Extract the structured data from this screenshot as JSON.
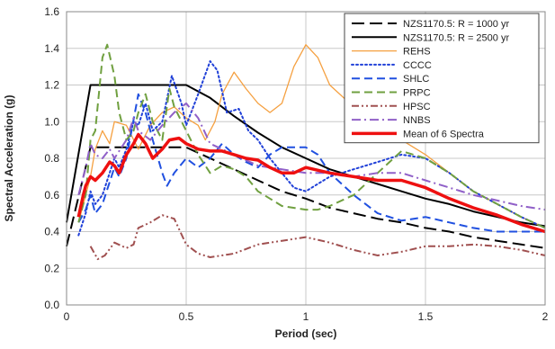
{
  "chart_data": {
    "type": "line",
    "title": "",
    "xlabel": "Period (sec)",
    "ylabel": "Spectral Acceleration (g)",
    "xlim": [
      0,
      2
    ],
    "ylim": [
      0,
      1.6
    ],
    "xticks": [
      0,
      0.5,
      1,
      1.5,
      2
    ],
    "xtick_labels": [
      "0",
      "0.5",
      "1",
      "1.5",
      "2"
    ],
    "yticks": [
      0,
      0.2,
      0.4,
      0.6,
      0.8,
      1.0,
      1.2,
      1.4,
      1.6
    ],
    "ytick_labels": [
      "0.0",
      "0.2",
      "0.4",
      "0.6",
      "0.8",
      "1.0",
      "1.2",
      "1.4",
      "1.6"
    ],
    "grid": {
      "horizontal": true,
      "vertical": true
    },
    "legend_position": "top-right",
    "series": [
      {
        "name": "NZS1170.5: R = 1000 yr",
        "color": "#000000",
        "dash": "long-dash",
        "width": 2,
        "points": [
          [
            0,
            0.32
          ],
          [
            0.1,
            0.86
          ],
          [
            0.5,
            0.86
          ],
          [
            0.6,
            0.8
          ],
          [
            0.7,
            0.74
          ],
          [
            0.8,
            0.68
          ],
          [
            0.9,
            0.62
          ],
          [
            1.0,
            0.58
          ],
          [
            1.1,
            0.53
          ],
          [
            1.2,
            0.5
          ],
          [
            1.3,
            0.47
          ],
          [
            1.4,
            0.45
          ],
          [
            1.5,
            0.42
          ],
          [
            1.6,
            0.4
          ],
          [
            1.7,
            0.37
          ],
          [
            1.8,
            0.35
          ],
          [
            1.9,
            0.33
          ],
          [
            2.0,
            0.31
          ]
        ]
      },
      {
        "name": "NZS1170.5: R = 2500 yr",
        "color": "#000000",
        "dash": "solid",
        "width": 2,
        "points": [
          [
            0,
            0.45
          ],
          [
            0.1,
            1.2
          ],
          [
            0.5,
            1.2
          ],
          [
            0.6,
            1.13
          ],
          [
            0.7,
            1.03
          ],
          [
            0.8,
            0.94
          ],
          [
            0.9,
            0.86
          ],
          [
            1.0,
            0.8
          ],
          [
            1.1,
            0.74
          ],
          [
            1.2,
            0.7
          ],
          [
            1.3,
            0.66
          ],
          [
            1.4,
            0.62
          ],
          [
            1.5,
            0.58
          ],
          [
            1.6,
            0.55
          ],
          [
            1.7,
            0.51
          ],
          [
            1.8,
            0.48
          ],
          [
            1.9,
            0.45
          ],
          [
            2.0,
            0.43
          ]
        ]
      },
      {
        "name": "REHS",
        "color": "#f5a040",
        "dash": "solid",
        "width": 1.3,
        "points": [
          [
            0.05,
            0.45
          ],
          [
            0.08,
            0.6
          ],
          [
            0.1,
            0.7
          ],
          [
            0.12,
            0.85
          ],
          [
            0.15,
            0.95
          ],
          [
            0.18,
            0.88
          ],
          [
            0.2,
            1.0
          ],
          [
            0.25,
            0.98
          ],
          [
            0.3,
            0.85
          ],
          [
            0.35,
            0.98
          ],
          [
            0.4,
            1.05
          ],
          [
            0.45,
            1.08
          ],
          [
            0.5,
            1.02
          ],
          [
            0.55,
            0.98
          ],
          [
            0.58,
            0.9
          ],
          [
            0.62,
            1.0
          ],
          [
            0.65,
            1.15
          ],
          [
            0.7,
            1.27
          ],
          [
            0.75,
            1.18
          ],
          [
            0.8,
            1.1
          ],
          [
            0.85,
            1.05
          ],
          [
            0.9,
            1.1
          ],
          [
            0.95,
            1.3
          ],
          [
            1.0,
            1.42
          ],
          [
            1.05,
            1.35
          ],
          [
            1.1,
            1.2
          ],
          [
            1.2,
            1.08
          ],
          [
            1.3,
            0.98
          ],
          [
            1.4,
            0.9
          ],
          [
            1.5,
            0.82
          ],
          [
            1.6,
            0.72
          ],
          [
            1.7,
            0.62
          ],
          [
            1.8,
            0.55
          ],
          [
            1.9,
            0.48
          ],
          [
            2.0,
            0.42
          ]
        ]
      },
      {
        "name": "CCCC",
        "color": "#2040d8",
        "dash": "dotted",
        "width": 2,
        "points": [
          [
            0.05,
            0.38
          ],
          [
            0.08,
            0.5
          ],
          [
            0.1,
            0.62
          ],
          [
            0.12,
            0.55
          ],
          [
            0.15,
            0.6
          ],
          [
            0.18,
            0.72
          ],
          [
            0.2,
            0.8
          ],
          [
            0.22,
            0.75
          ],
          [
            0.25,
            0.85
          ],
          [
            0.28,
            1.0
          ],
          [
            0.3,
            0.98
          ],
          [
            0.33,
            1.1
          ],
          [
            0.36,
            0.95
          ],
          [
            0.4,
            1.0
          ],
          [
            0.44,
            1.25
          ],
          [
            0.48,
            1.1
          ],
          [
            0.5,
            0.98
          ],
          [
            0.55,
            1.15
          ],
          [
            0.6,
            1.33
          ],
          [
            0.63,
            1.28
          ],
          [
            0.67,
            1.05
          ],
          [
            0.72,
            1.07
          ],
          [
            0.76,
            0.95
          ],
          [
            0.8,
            0.9
          ],
          [
            0.85,
            0.8
          ],
          [
            0.9,
            0.72
          ],
          [
            0.95,
            0.64
          ],
          [
            1.0,
            0.62
          ],
          [
            1.05,
            0.66
          ],
          [
            1.1,
            0.7
          ],
          [
            1.2,
            0.74
          ],
          [
            1.3,
            0.78
          ],
          [
            1.4,
            0.82
          ],
          [
            1.5,
            0.8
          ],
          [
            1.6,
            0.72
          ],
          [
            1.7,
            0.62
          ],
          [
            1.8,
            0.55
          ],
          [
            1.9,
            0.48
          ],
          [
            2.0,
            0.42
          ]
        ]
      },
      {
        "name": "SHLC",
        "color": "#2050e0",
        "dash": "dash",
        "width": 2,
        "points": [
          [
            0.05,
            0.45
          ],
          [
            0.08,
            0.52
          ],
          [
            0.1,
            0.6
          ],
          [
            0.12,
            0.5
          ],
          [
            0.15,
            0.55
          ],
          [
            0.2,
            0.75
          ],
          [
            0.22,
            0.7
          ],
          [
            0.25,
            0.8
          ],
          [
            0.3,
            1.15
          ],
          [
            0.33,
            1.05
          ],
          [
            0.36,
            0.9
          ],
          [
            0.4,
            0.72
          ],
          [
            0.42,
            0.65
          ],
          [
            0.45,
            0.72
          ],
          [
            0.5,
            0.8
          ],
          [
            0.55,
            0.75
          ],
          [
            0.6,
            0.8
          ],
          [
            0.65,
            0.88
          ],
          [
            0.7,
            0.82
          ],
          [
            0.75,
            0.78
          ],
          [
            0.8,
            0.75
          ],
          [
            0.85,
            0.82
          ],
          [
            0.9,
            0.86
          ],
          [
            1.0,
            0.86
          ],
          [
            1.05,
            0.82
          ],
          [
            1.1,
            0.72
          ],
          [
            1.2,
            0.6
          ],
          [
            1.3,
            0.5
          ],
          [
            1.4,
            0.46
          ],
          [
            1.5,
            0.48
          ],
          [
            1.6,
            0.45
          ],
          [
            1.7,
            0.42
          ],
          [
            1.8,
            0.4
          ],
          [
            1.9,
            0.4
          ],
          [
            2.0,
            0.4
          ]
        ]
      },
      {
        "name": "PRPC",
        "color": "#70a040",
        "dash": "dash",
        "width": 2,
        "points": [
          [
            0.05,
            0.45
          ],
          [
            0.08,
            0.6
          ],
          [
            0.1,
            0.9
          ],
          [
            0.12,
            0.95
          ],
          [
            0.15,
            1.35
          ],
          [
            0.17,
            1.42
          ],
          [
            0.2,
            1.25
          ],
          [
            0.22,
            1.05
          ],
          [
            0.25,
            0.9
          ],
          [
            0.28,
            0.95
          ],
          [
            0.3,
            1.05
          ],
          [
            0.33,
            1.15
          ],
          [
            0.36,
            1.0
          ],
          [
            0.4,
            0.9
          ],
          [
            0.43,
            1.18
          ],
          [
            0.45,
            1.08
          ],
          [
            0.5,
            0.95
          ],
          [
            0.55,
            0.82
          ],
          [
            0.6,
            0.72
          ],
          [
            0.65,
            0.76
          ],
          [
            0.7,
            0.74
          ],
          [
            0.75,
            0.7
          ],
          [
            0.8,
            0.62
          ],
          [
            0.85,
            0.58
          ],
          [
            0.9,
            0.54
          ],
          [
            1.0,
            0.52
          ],
          [
            1.05,
            0.52
          ],
          [
            1.1,
            0.54
          ],
          [
            1.2,
            0.6
          ],
          [
            1.3,
            0.72
          ],
          [
            1.4,
            0.84
          ],
          [
            1.5,
            0.8
          ],
          [
            1.6,
            0.72
          ],
          [
            1.7,
            0.62
          ],
          [
            1.8,
            0.55
          ],
          [
            1.9,
            0.48
          ],
          [
            2.0,
            0.42
          ]
        ]
      },
      {
        "name": "HPSC",
        "color": "#a05050",
        "dash": "dash-dot-dot",
        "width": 2,
        "points": [
          [
            0.1,
            0.32
          ],
          [
            0.13,
            0.25
          ],
          [
            0.16,
            0.27
          ],
          [
            0.2,
            0.34
          ],
          [
            0.25,
            0.31
          ],
          [
            0.28,
            0.33
          ],
          [
            0.3,
            0.42
          ],
          [
            0.35,
            0.45
          ],
          [
            0.4,
            0.49
          ],
          [
            0.45,
            0.47
          ],
          [
            0.5,
            0.33
          ],
          [
            0.55,
            0.28
          ],
          [
            0.6,
            0.26
          ],
          [
            0.7,
            0.28
          ],
          [
            0.8,
            0.33
          ],
          [
            0.9,
            0.35
          ],
          [
            1.0,
            0.37
          ],
          [
            1.1,
            0.34
          ],
          [
            1.2,
            0.3
          ],
          [
            1.3,
            0.27
          ],
          [
            1.4,
            0.29
          ],
          [
            1.5,
            0.32
          ],
          [
            1.6,
            0.32
          ],
          [
            1.7,
            0.33
          ],
          [
            1.8,
            0.32
          ],
          [
            1.9,
            0.3
          ],
          [
            2.0,
            0.27
          ]
        ]
      },
      {
        "name": "NNBS",
        "color": "#9060c8",
        "dash": "dash-dot",
        "width": 2,
        "points": [
          [
            0.05,
            0.6
          ],
          [
            0.08,
            0.75
          ],
          [
            0.1,
            0.88
          ],
          [
            0.12,
            0.82
          ],
          [
            0.15,
            0.8
          ],
          [
            0.18,
            0.85
          ],
          [
            0.2,
            0.8
          ],
          [
            0.25,
            0.9
          ],
          [
            0.28,
            1.02
          ],
          [
            0.3,
            0.95
          ],
          [
            0.35,
            0.9
          ],
          [
            0.4,
            0.98
          ],
          [
            0.45,
            1.05
          ],
          [
            0.5,
            1.1
          ],
          [
            0.55,
            1.02
          ],
          [
            0.6,
            0.88
          ],
          [
            0.65,
            0.85
          ],
          [
            0.7,
            0.82
          ],
          [
            0.8,
            0.76
          ],
          [
            0.9,
            0.74
          ],
          [
            1.0,
            0.72
          ],
          [
            1.1,
            0.72
          ],
          [
            1.2,
            0.7
          ],
          [
            1.3,
            0.72
          ],
          [
            1.4,
            0.72
          ],
          [
            1.5,
            0.68
          ],
          [
            1.6,
            0.64
          ],
          [
            1.7,
            0.6
          ],
          [
            1.8,
            0.57
          ],
          [
            1.9,
            0.54
          ],
          [
            2.0,
            0.52
          ]
        ]
      },
      {
        "name": "Mean of 6 Spectra",
        "color": "#ee1010",
        "dash": "solid",
        "width": 3.5,
        "points": [
          [
            0.05,
            0.48
          ],
          [
            0.07,
            0.6
          ],
          [
            0.08,
            0.65
          ],
          [
            0.1,
            0.7
          ],
          [
            0.12,
            0.68
          ],
          [
            0.15,
            0.72
          ],
          [
            0.18,
            0.78
          ],
          [
            0.2,
            0.76
          ],
          [
            0.22,
            0.72
          ],
          [
            0.25,
            0.82
          ],
          [
            0.28,
            0.88
          ],
          [
            0.3,
            0.93
          ],
          [
            0.33,
            0.88
          ],
          [
            0.36,
            0.8
          ],
          [
            0.4,
            0.85
          ],
          [
            0.43,
            0.9
          ],
          [
            0.47,
            0.91
          ],
          [
            0.5,
            0.88
          ],
          [
            0.55,
            0.85
          ],
          [
            0.6,
            0.84
          ],
          [
            0.65,
            0.84
          ],
          [
            0.7,
            0.82
          ],
          [
            0.75,
            0.8
          ],
          [
            0.8,
            0.79
          ],
          [
            0.85,
            0.75
          ],
          [
            0.9,
            0.72
          ],
          [
            0.95,
            0.72
          ],
          [
            1.0,
            0.75
          ],
          [
            1.1,
            0.72
          ],
          [
            1.2,
            0.7
          ],
          [
            1.3,
            0.68
          ],
          [
            1.4,
            0.68
          ],
          [
            1.5,
            0.64
          ],
          [
            1.6,
            0.58
          ],
          [
            1.7,
            0.53
          ],
          [
            1.8,
            0.49
          ],
          [
            1.9,
            0.44
          ],
          [
            2.0,
            0.4
          ]
        ]
      }
    ]
  }
}
